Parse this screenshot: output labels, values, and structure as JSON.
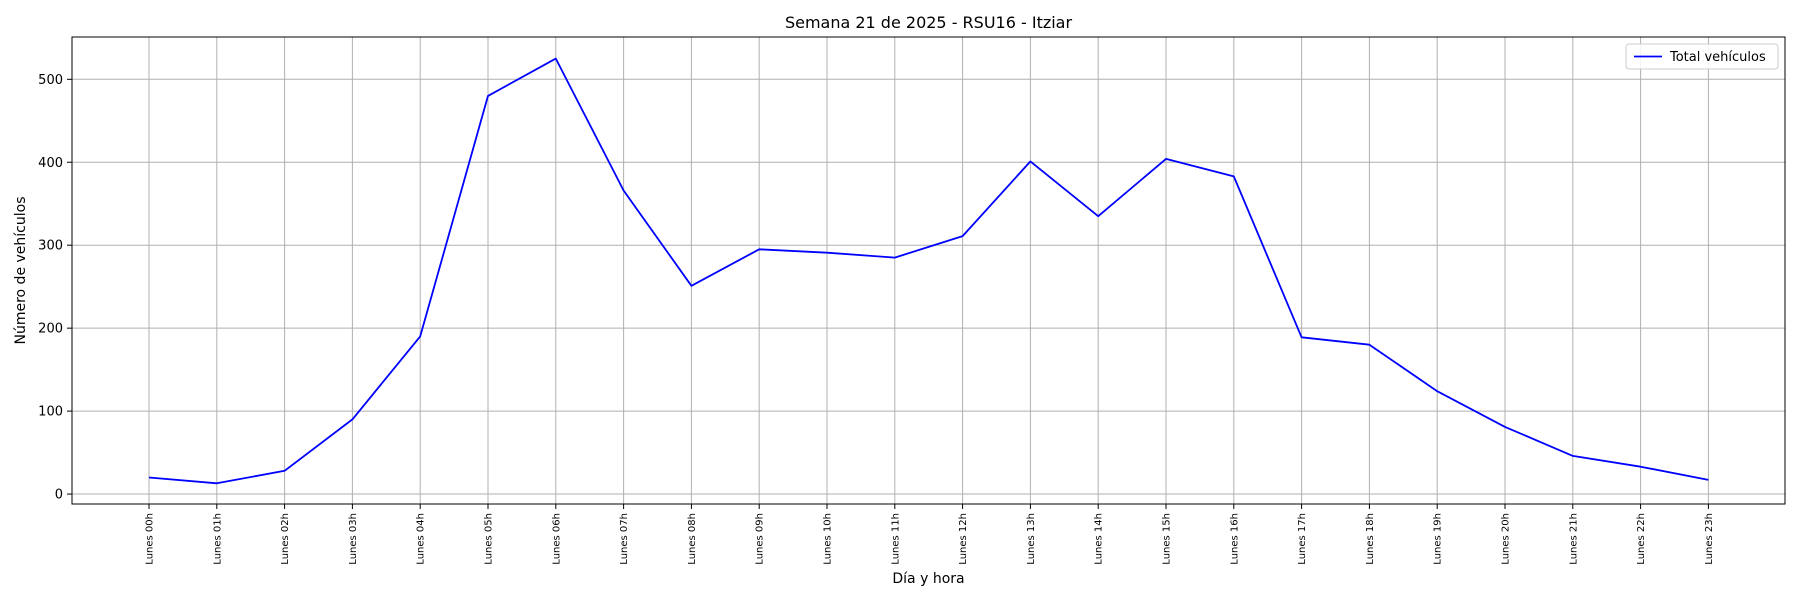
{
  "chart_data": {
    "type": "line",
    "title": "Semana 21 de 2025 - RSU16 - Itziar",
    "xlabel": "Día y hora",
    "ylabel": "Número de vehículos",
    "categories": [
      "Lunes 00h",
      "Lunes 01h",
      "Lunes 02h",
      "Lunes 03h",
      "Lunes 04h",
      "Lunes 05h",
      "Lunes 06h",
      "Lunes 07h",
      "Lunes 08h",
      "Lunes 09h",
      "Lunes 10h",
      "Lunes 11h",
      "Lunes 12h",
      "Lunes 13h",
      "Lunes 14h",
      "Lunes 15h",
      "Lunes 16h",
      "Lunes 17h",
      "Lunes 18h",
      "Lunes 19h",
      "Lunes 20h",
      "Lunes 21h",
      "Lunes 22h",
      "Lunes 23h"
    ],
    "series": [
      {
        "name": "Total vehículos",
        "color": "#0000ff",
        "values": [
          20,
          13,
          28,
          90,
          190,
          480,
          525,
          366,
          251,
          295,
          291,
          285,
          311,
          401,
          335,
          404,
          383,
          189,
          180,
          124,
          81,
          46,
          33,
          17
        ]
      }
    ],
    "ylim": [
      -12,
      551
    ],
    "yticks": [
      0,
      100,
      200,
      300,
      400,
      500
    ],
    "grid": true,
    "legend_position": "top-right"
  }
}
